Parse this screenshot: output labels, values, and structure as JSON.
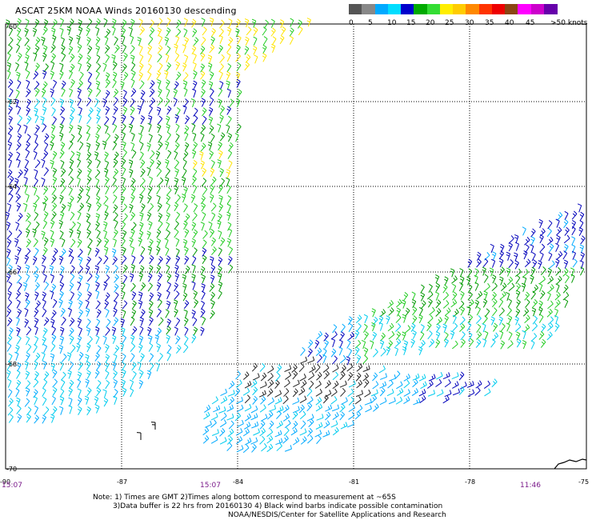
{
  "title": "ASCAT 25KM NOAA Winds 20160130 descending",
  "legend": {
    "colors": [
      "#555555",
      "#888888",
      "#00aaff",
      "#00ddff",
      "#0000cc",
      "#00aa00",
      "#33dd33",
      "#ffee00",
      "#ffcc00",
      "#ff8800",
      "#ff3300",
      "#ee0000",
      "#8b4513",
      "#ff00ff",
      "#cc00cc",
      "#6600aa"
    ],
    "labels": [
      "0",
      "5",
      "10",
      "15",
      "20",
      "25",
      "30",
      "35",
      "40",
      "45",
      ">50 knots"
    ]
  },
  "axes": {
    "lat_labels": [
      "-60",
      "-62",
      "-64",
      "-66",
      "-68",
      "-70"
    ],
    "lon_labels": [
      "-90",
      "-87",
      "-84",
      "-81",
      "-78",
      "-75"
    ]
  },
  "times": [
    "15:07",
    "15:07",
    "11:46"
  ],
  "notes": [
    "Note: 1) Times are GMT 2)Times along bottom correspond to measurement at ~65S",
    "3)Data buffer is 22 hrs from 20160130 4) Black wind barbs indicate possible contamination",
    "NOAA/NESDIS/Center for Satellite Applications and Research"
  ]
}
